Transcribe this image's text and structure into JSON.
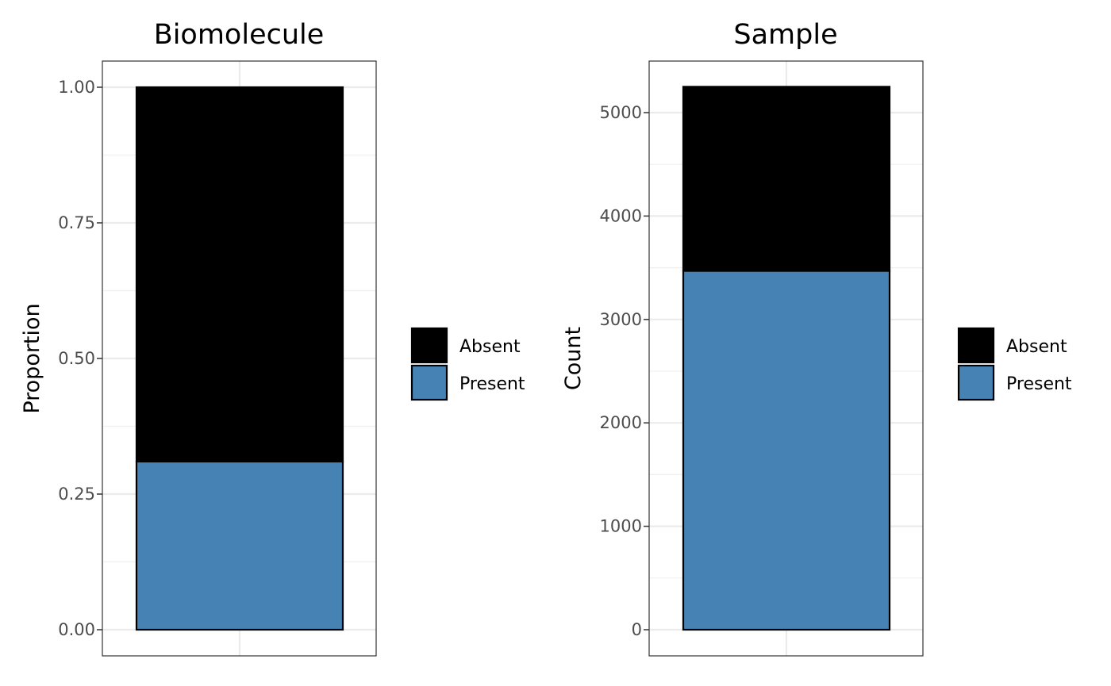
{
  "chart_data": [
    {
      "type": "bar",
      "stacked": true,
      "title": "Biomolecule",
      "xlabel": "",
      "ylabel": "Proportion",
      "ylim": [
        0,
        1
      ],
      "ticks": [
        "0.00",
        "0.25",
        "0.50",
        "0.75",
        "1.00"
      ],
      "tick_values": [
        0,
        0.25,
        0.5,
        0.75,
        1
      ],
      "categories": [
        ""
      ],
      "series": [
        {
          "name": "Present",
          "color": "#4682b4",
          "values": [
            0.31
          ]
        },
        {
          "name": "Absent",
          "color": "#000000",
          "values": [
            0.69
          ]
        }
      ],
      "legend": {
        "position": "right",
        "items": [
          "Absent",
          "Present"
        ]
      },
      "grid": true
    },
    {
      "type": "bar",
      "stacked": true,
      "title": "Sample",
      "xlabel": "",
      "ylabel": "Count",
      "ylim": [
        0,
        5250
      ],
      "ticks": [
        "0",
        "1000",
        "2000",
        "3000",
        "4000",
        "5000"
      ],
      "tick_values": [
        0,
        1000,
        2000,
        3000,
        4000,
        5000
      ],
      "categories": [
        ""
      ],
      "series": [
        {
          "name": "Present",
          "color": "#4682b4",
          "values": [
            3470
          ]
        },
        {
          "name": "Absent",
          "color": "#000000",
          "values": [
            1780
          ]
        }
      ],
      "legend": {
        "position": "right",
        "items": [
          "Absent",
          "Present"
        ]
      },
      "grid": true
    }
  ]
}
